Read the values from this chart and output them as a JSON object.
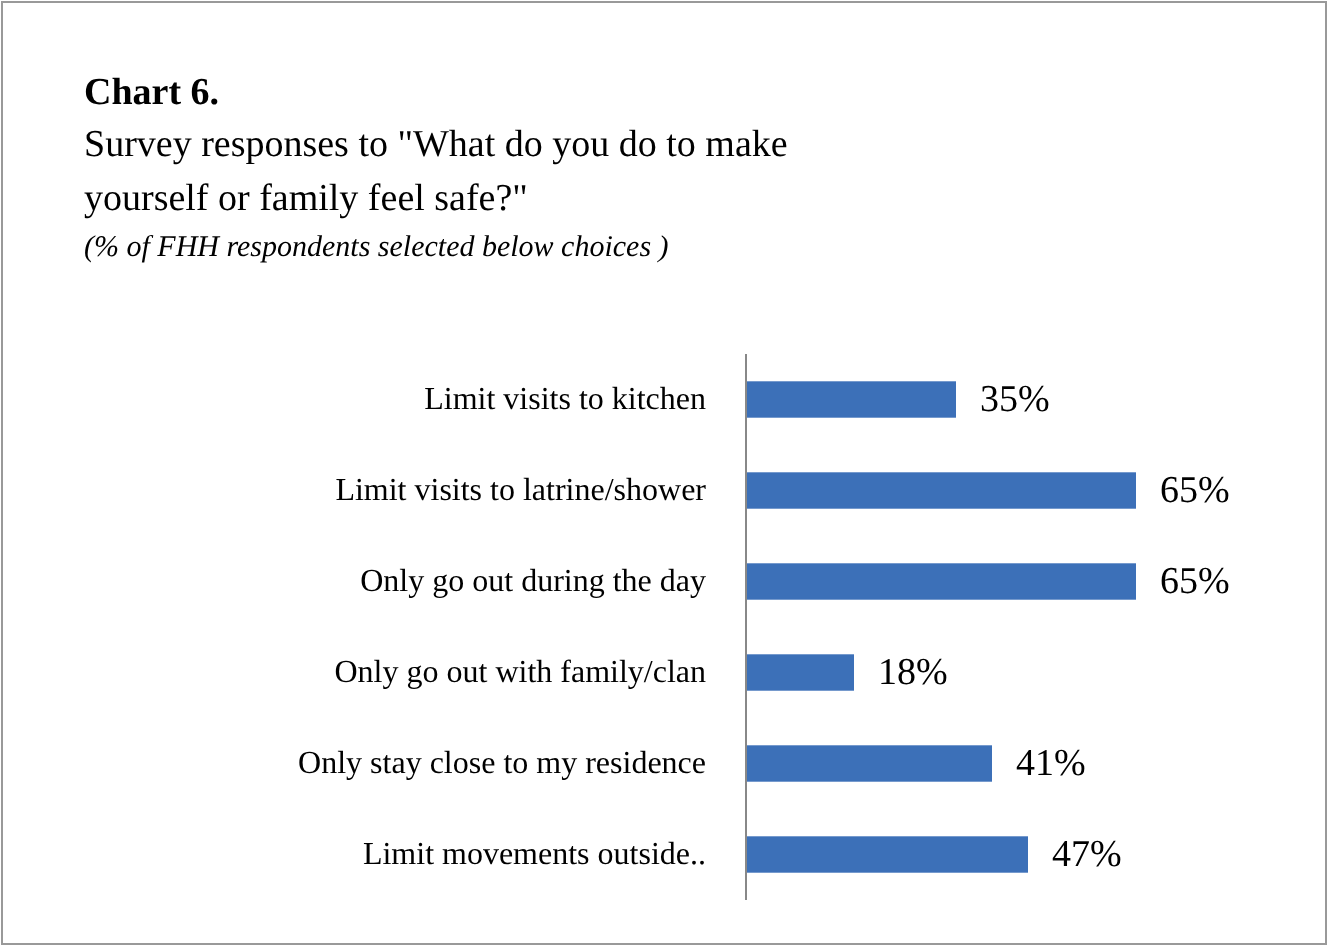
{
  "chart_data": {
    "type": "bar",
    "orientation": "horizontal",
    "title": "Chart 6.",
    "subtitle": "Survey responses to \"What do you do to make yourself or  family feel safe?\"",
    "annotations": [
      "(% of FHH respondents selected below choices )"
    ],
    "categories": [
      "Limit visits to kitchen",
      "Limit visits to latrine/shower",
      "Only go out during the day",
      "Only go out with family/clan",
      "Only stay close to my residence",
      "Limit movements outside.."
    ],
    "values": [
      35,
      65,
      65,
      18,
      41,
      47
    ],
    "value_labels": [
      "35%",
      "65%",
      "65%",
      "18%",
      "41%",
      "47%"
    ],
    "color": "#3c70b8"
  }
}
